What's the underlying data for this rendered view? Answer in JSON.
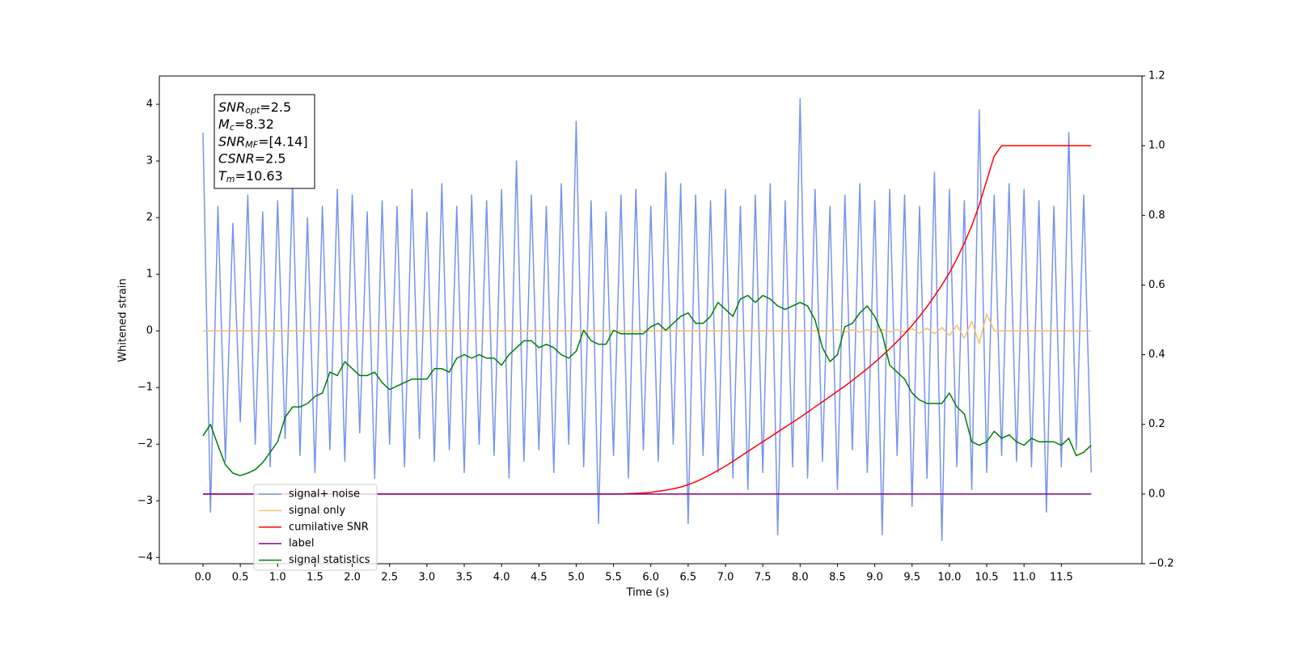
{
  "chart_data": {
    "type": "line",
    "xlabel": "Time (s)",
    "ylabel": "Whitened strain",
    "xlim": [
      -0.585,
      12.58
    ],
    "ylim": [
      -4.11,
      4.5
    ],
    "y2lim": [
      -0.2,
      1.2
    ],
    "xticks": [
      {
        "value": 0,
        "label": "0.0"
      },
      0.5,
      {
        "value": 1,
        "label": "1.0"
      },
      1.5,
      {
        "value": 2,
        "label": "2.0"
      },
      2.5,
      {
        "value": 3,
        "label": "3.0"
      },
      3.5,
      {
        "value": 4,
        "label": "4.0"
      },
      4.5,
      {
        "value": 5,
        "label": "5.0"
      },
      5.5,
      {
        "value": 6,
        "label": "6.0"
      },
      6.5,
      {
        "value": 7,
        "label": "7.0"
      },
      7.5,
      {
        "value": 8,
        "label": "8.0"
      },
      8.5,
      {
        "value": 9,
        "label": "9.0"
      },
      9.5,
      {
        "value": 10,
        "label": "10.0"
      },
      10.5,
      {
        "value": 11,
        "label": "11.0"
      },
      11.5
    ],
    "yticks": [
      {
        "value": -4,
        "label": "−4"
      },
      {
        "value": -3,
        "label": "−3"
      },
      {
        "value": -2,
        "label": "−2"
      },
      {
        "value": -1,
        "label": "−1"
      },
      0,
      1,
      2,
      3,
      4
    ],
    "y2ticks": [
      {
        "value": -0.2,
        "label": "−0.2"
      },
      {
        "value": 0,
        "label": "0.0"
      },
      0.2,
      0.4,
      0.6,
      0.8,
      {
        "value": 1,
        "label": "1.0"
      },
      1.2
    ],
    "annotation": [
      {
        "symbol": "SNR",
        "subscript": "opt",
        "text": "=2.5"
      },
      {
        "symbol": "M",
        "subscript": "c",
        "text": "=8.32"
      },
      {
        "symbol": "SNR",
        "subscript": "MF",
        "text": "=[4.14]"
      },
      {
        "symbol": "CSNR",
        "text": "=2.5"
      },
      {
        "symbol": "T",
        "subscript": "m",
        "text": "=10.63"
      }
    ],
    "x": [
      0,
      0.1,
      0.2,
      0.3,
      0.4,
      0.5,
      0.6,
      0.7,
      0.8,
      0.9,
      1,
      1.1,
      1.2,
      1.3,
      1.4,
      1.5,
      1.6,
      1.7,
      1.8,
      1.9,
      2,
      2.1,
      2.2,
      2.3,
      2.4,
      2.5,
      2.6,
      2.7,
      2.8,
      2.9,
      3,
      3.1,
      3.2,
      3.3,
      3.4,
      3.5,
      3.6,
      3.7,
      3.8,
      3.9,
      4,
      4.1,
      4.2,
      4.3,
      4.4,
      4.5,
      4.6,
      4.7,
      4.8,
      4.9,
      5,
      5.1,
      5.2,
      5.3,
      5.4,
      5.5,
      5.6,
      5.7,
      5.8,
      5.9,
      6,
      6.1,
      6.2,
      6.3,
      6.4,
      6.5,
      6.6,
      6.7,
      6.8,
      6.9,
      7,
      7.1,
      7.2,
      7.3,
      7.4,
      7.5,
      7.6,
      7.7,
      7.8,
      7.9,
      8,
      8.1,
      8.2,
      8.3,
      8.4,
      8.5,
      8.6,
      8.7,
      8.8,
      8.9,
      9,
      9.1,
      9.2,
      9.3,
      9.4,
      9.5,
      9.6,
      9.7,
      9.8,
      9.9,
      10,
      10.1,
      10.2,
      10.3,
      10.4,
      10.5,
      10.6,
      10.7,
      10.8,
      10.9,
      11,
      11.1,
      11.2,
      11.3,
      11.4,
      11.5,
      11.6,
      11.7,
      11.8,
      11.9
    ],
    "series": [
      {
        "name": "signal+ noise",
        "color": "#7894e8",
        "values": [
          3.5,
          -3.2,
          2.2,
          -2.3,
          1.9,
          -1.6,
          2.4,
          -2.0,
          2.1,
          -2.4,
          2.3,
          -1.9,
          2.6,
          -2.2,
          2.0,
          -2.5,
          2.2,
          -2.1,
          2.5,
          -2.3,
          2.4,
          -1.8,
          2.1,
          -2.6,
          2.3,
          -2.0,
          2.2,
          -2.4,
          2.5,
          -1.9,
          2.1,
          -2.3,
          2.6,
          -2.1,
          2.2,
          -2.5,
          2.4,
          -2.0,
          2.3,
          -2.2,
          2.5,
          -2.6,
          3.0,
          -2.3,
          2.4,
          -2.1,
          2.2,
          -2.5,
          2.6,
          -2.0,
          3.7,
          -2.4,
          2.3,
          -3.4,
          2.1,
          -2.2,
          2.4,
          -2.6,
          2.5,
          -2.1,
          2.2,
          -2.3,
          2.8,
          -2.0,
          2.6,
          -3.4,
          2.4,
          -2.2,
          2.3,
          -2.5,
          2.5,
          -2.6,
          2.2,
          -2.8,
          2.4,
          -2.5,
          2.6,
          -3.6,
          2.3,
          -2.4,
          4.1,
          -2.6,
          2.5,
          -2.3,
          2.2,
          -2.8,
          2.4,
          -2.1,
          2.6,
          -2.5,
          2.3,
          -3.6,
          2.5,
          -2.2,
          2.4,
          -3.1,
          2.2,
          -2.6,
          2.8,
          -3.7,
          2.5,
          -2.4,
          2.3,
          -2.8,
          3.9,
          -2.5,
          2.4,
          -2.2,
          2.6,
          -2.3,
          2.5,
          -2.4,
          2.3,
          -3.2,
          2.2,
          -2.4,
          3.5,
          -2.1,
          2.4,
          -2.5
        ]
      },
      {
        "name": "signal only",
        "color": "#f2c071",
        "values": [
          0,
          0,
          0,
          0,
          0,
          0,
          0,
          0,
          0,
          0,
          0,
          0,
          0,
          0,
          0,
          0,
          0,
          0,
          0,
          0,
          0,
          0,
          0,
          0,
          0,
          0,
          0,
          0,
          0,
          0,
          0,
          0,
          0,
          0,
          0,
          0,
          0,
          0,
          0,
          0,
          0,
          0,
          0,
          0,
          0,
          0,
          0,
          0,
          0,
          0,
          0,
          0,
          0,
          0,
          0,
          0,
          0,
          0,
          0,
          0,
          0,
          0,
          0,
          0,
          0,
          0,
          0,
          0,
          0,
          0,
          0,
          0,
          0,
          0,
          0,
          0,
          0,
          0,
          0,
          0,
          0,
          0,
          0,
          0,
          0,
          0.02,
          -0.02,
          0.02,
          -0.02,
          0.02,
          -0.02,
          0.02,
          -0.02,
          0.02,
          -0.02,
          0.04,
          -0.04,
          0.05,
          -0.05,
          0.06,
          -0.08,
          0.1,
          -0.13,
          0.17,
          -0.22,
          0.3,
          0,
          0,
          0,
          0,
          0,
          0,
          0,
          0,
          0,
          0,
          0,
          0,
          0,
          0
        ]
      },
      {
        "name": "cumilative SNR",
        "color": "#ff0000",
        "axis": "y2",
        "values": [
          0,
          0,
          0,
          0,
          0,
          0,
          0,
          0,
          0,
          0,
          0,
          0,
          0,
          0,
          0,
          0,
          0,
          0,
          0,
          0,
          0,
          0,
          0,
          0,
          0,
          0,
          0,
          0,
          0,
          0,
          0,
          0,
          0,
          0,
          0,
          0,
          0,
          0,
          0,
          0,
          0,
          0,
          0,
          0,
          0,
          0,
          0,
          0,
          0,
          0,
          0,
          0,
          0,
          0,
          0,
          0,
          0,
          0.001,
          0.002,
          0.003,
          0.005,
          0.008,
          0.011,
          0.015,
          0.02,
          0.027,
          0.035,
          0.045,
          0.056,
          0.068,
          0.08,
          0.094,
          0.108,
          0.122,
          0.136,
          0.15,
          0.164,
          0.178,
          0.192,
          0.206,
          0.22,
          0.235,
          0.25,
          0.265,
          0.28,
          0.295,
          0.31,
          0.326,
          0.343,
          0.36,
          0.378,
          0.397,
          0.417,
          0.438,
          0.46,
          0.484,
          0.51,
          0.538,
          0.568,
          0.6,
          0.635,
          0.675,
          0.72,
          0.77,
          0.83,
          0.9,
          0.97,
          1,
          1,
          1,
          1,
          1,
          1,
          1,
          1,
          1,
          1,
          1,
          1,
          1
        ]
      },
      {
        "name": "label",
        "color": "#800080",
        "axis": "y2",
        "values": [
          0,
          0,
          0,
          0,
          0,
          0,
          0,
          0,
          0,
          0,
          0,
          0,
          0,
          0,
          0,
          0,
          0,
          0,
          0,
          0,
          0,
          0,
          0,
          0,
          0,
          0,
          0,
          0,
          0,
          0,
          0,
          0,
          0,
          0,
          0,
          0,
          0,
          0,
          0,
          0,
          0,
          0,
          0,
          0,
          0,
          0,
          0,
          0,
          0,
          0,
          0,
          0,
          0,
          0,
          0,
          0,
          0,
          0,
          0,
          0,
          0,
          0,
          0,
          0,
          0,
          0,
          0,
          0,
          0,
          0,
          0,
          0,
          0,
          0,
          0,
          0,
          0,
          0,
          0,
          0,
          0,
          0,
          0,
          0,
          0,
          0,
          0,
          0,
          0,
          0,
          0,
          0,
          0,
          0,
          0,
          0,
          0,
          0,
          0,
          0,
          0,
          0,
          0,
          0,
          0,
          0,
          0,
          0,
          0,
          0,
          0,
          0,
          0,
          0,
          0,
          0,
          0,
          0,
          0,
          0
        ]
      },
      {
        "name": "signal statistics",
        "color": "#008000",
        "axis": "y2",
        "values": [
          0.167,
          0.2,
          0.14,
          0.084,
          0.06,
          0.053,
          0.06,
          0.07,
          0.09,
          0.12,
          0.15,
          0.22,
          0.25,
          0.25,
          0.26,
          0.28,
          0.29,
          0.35,
          0.34,
          0.38,
          0.36,
          0.34,
          0.34,
          0.35,
          0.32,
          0.3,
          0.31,
          0.32,
          0.33,
          0.33,
          0.33,
          0.36,
          0.36,
          0.35,
          0.39,
          0.4,
          0.39,
          0.4,
          0.39,
          0.39,
          0.37,
          0.4,
          0.42,
          0.44,
          0.44,
          0.42,
          0.43,
          0.42,
          0.4,
          0.39,
          0.41,
          0.47,
          0.44,
          0.43,
          0.43,
          0.47,
          0.46,
          0.46,
          0.46,
          0.46,
          0.48,
          0.49,
          0.47,
          0.49,
          0.51,
          0.52,
          0.49,
          0.49,
          0.51,
          0.55,
          0.53,
          0.51,
          0.56,
          0.57,
          0.55,
          0.57,
          0.56,
          0.54,
          0.53,
          0.54,
          0.55,
          0.54,
          0.5,
          0.42,
          0.38,
          0.4,
          0.48,
          0.49,
          0.52,
          0.54,
          0.51,
          0.46,
          0.37,
          0.35,
          0.33,
          0.29,
          0.27,
          0.26,
          0.26,
          0.26,
          0.29,
          0.25,
          0.23,
          0.15,
          0.14,
          0.15,
          0.18,
          0.16,
          0.17,
          0.15,
          0.14,
          0.16,
          0.15,
          0.15,
          0.15,
          0.14,
          0.16,
          0.11,
          0.12,
          0.14
        ]
      }
    ]
  }
}
